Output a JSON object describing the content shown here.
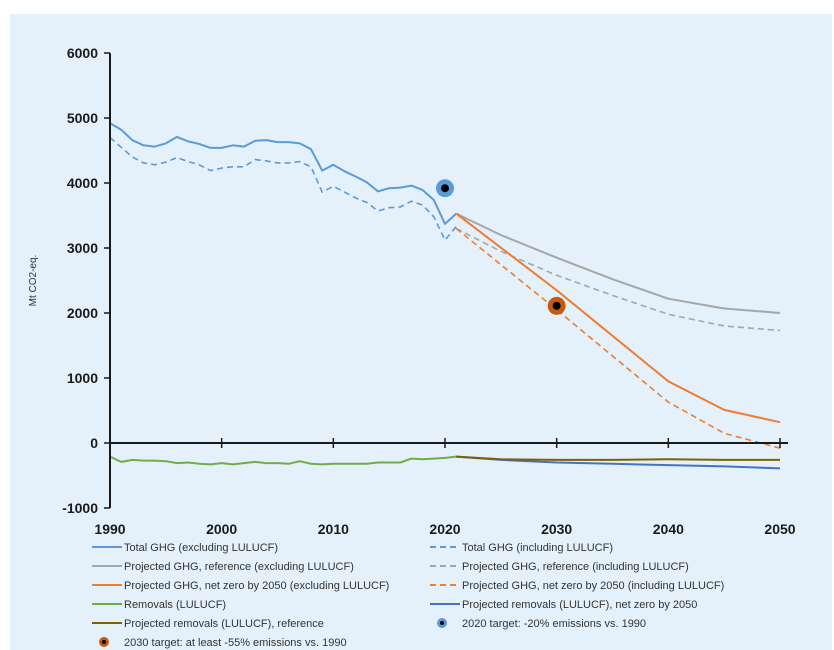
{
  "chart_data": {
    "type": "line",
    "title": "",
    "xlabel": "",
    "ylabel": "Mt CO2-eq.",
    "xlim": [
      1990,
      2050
    ],
    "ylim": [
      -1000,
      6000
    ],
    "x_ticks": [
      "1990",
      "2000",
      "2010",
      "2020",
      "2030",
      "2040",
      "2050"
    ],
    "y_ticks": [
      "-1000",
      "0",
      "1000",
      "2000",
      "3000",
      "4000",
      "5000",
      "6000"
    ],
    "grid": false,
    "legend_position": "bottom",
    "series": [
      {
        "name": "Total GHG (excluding LULUCF)",
        "color": "#5b9bd5",
        "dash": "solid",
        "width": 2,
        "x": [
          1990,
          1991,
          1992,
          1993,
          1994,
          1995,
          1996,
          1997,
          1998,
          1999,
          2000,
          2001,
          2002,
          2003,
          2004,
          2005,
          2006,
          2007,
          2008,
          2009,
          2010,
          2011,
          2012,
          2013,
          2014,
          2015,
          2016,
          2017,
          2018,
          2019,
          2020,
          2021
        ],
        "y": [
          4920,
          4820,
          4660,
          4580,
          4560,
          4610,
          4710,
          4640,
          4600,
          4540,
          4540,
          4580,
          4560,
          4650,
          4660,
          4630,
          4630,
          4610,
          4520,
          4190,
          4280,
          4180,
          4100,
          4010,
          3870,
          3920,
          3930,
          3960,
          3890,
          3740,
          3370,
          3530
        ]
      },
      {
        "name": "Total GHG (including LULUCF)",
        "color": "#5b9bd5",
        "dash": "dashed",
        "width": 1.6,
        "x": [
          1990,
          1991,
          1992,
          1993,
          1994,
          1995,
          1996,
          1997,
          1998,
          1999,
          2000,
          2001,
          2002,
          2003,
          2004,
          2005,
          2006,
          2007,
          2008,
          2009,
          2010,
          2011,
          2012,
          2013,
          2014,
          2015,
          2016,
          2017,
          2018,
          2019,
          2020,
          2021
        ],
        "y": [
          4700,
          4550,
          4400,
          4310,
          4280,
          4320,
          4390,
          4330,
          4280,
          4190,
          4230,
          4250,
          4250,
          4360,
          4340,
          4310,
          4310,
          4330,
          4250,
          3860,
          3950,
          3860,
          3770,
          3700,
          3570,
          3620,
          3630,
          3720,
          3660,
          3480,
          3120,
          3330
        ]
      },
      {
        "name": "Projected GHG, reference (excluding LULUCF)",
        "color": "#a6a6a6",
        "dash": "solid",
        "width": 2,
        "x": [
          2021,
          2025,
          2030,
          2035,
          2040,
          2045,
          2050
        ],
        "y": [
          3530,
          3200,
          2850,
          2520,
          2220,
          2070,
          2000
        ]
      },
      {
        "name": "Projected GHG, reference (including LULUCF)",
        "color": "#a6a6a6",
        "dash": "dashed",
        "width": 1.6,
        "x": [
          2021,
          2025,
          2030,
          2035,
          2040,
          2045,
          2050
        ],
        "y": [
          3300,
          2950,
          2580,
          2270,
          1980,
          1800,
          1730
        ]
      },
      {
        "name": "Projected GHG, net zero by 2050 (excluding LULUCF)",
        "color": "#ed7d31",
        "dash": "solid",
        "width": 2,
        "x": [
          2021,
          2030,
          2040,
          2045,
          2050
        ],
        "y": [
          3530,
          2350,
          950,
          510,
          320
        ]
      },
      {
        "name": "Projected GHG, net zero by 2050 (including LULUCF)",
        "color": "#ed7d31",
        "dash": "dashed",
        "width": 1.6,
        "x": [
          2021,
          2030,
          2040,
          2045,
          2050
        ],
        "y": [
          3300,
          2050,
          630,
          150,
          -80
        ]
      },
      {
        "name": "Removals (LULUCF)",
        "color": "#70ad47",
        "dash": "solid",
        "width": 2,
        "x": [
          1990,
          1991,
          1992,
          1993,
          1994,
          1995,
          1996,
          1997,
          1998,
          1999,
          2000,
          2001,
          2002,
          2003,
          2004,
          2005,
          2006,
          2007,
          2008,
          2009,
          2010,
          2011,
          2012,
          2013,
          2014,
          2015,
          2016,
          2017,
          2018,
          2019,
          2020,
          2021
        ],
        "y": [
          -210,
          -290,
          -260,
          -270,
          -270,
          -280,
          -310,
          -300,
          -320,
          -330,
          -310,
          -330,
          -310,
          -290,
          -310,
          -310,
          -320,
          -280,
          -320,
          -330,
          -320,
          -320,
          -320,
          -320,
          -300,
          -300,
          -300,
          -240,
          -250,
          -240,
          -230,
          -210
        ]
      },
      {
        "name": "Projected removals (LULUCF), net zero by 2050",
        "color": "#4472c4",
        "dash": "solid",
        "width": 2,
        "x": [
          2021,
          2025,
          2030,
          2035,
          2040,
          2045,
          2050
        ],
        "y": [
          -210,
          -260,
          -300,
          -320,
          -340,
          -360,
          -390
        ]
      },
      {
        "name": "Projected removals (LULUCF), reference",
        "color": "#7f6000",
        "dash": "solid",
        "width": 2,
        "x": [
          2021,
          2025,
          2030,
          2035,
          2040,
          2045,
          2050
        ],
        "y": [
          -210,
          -250,
          -260,
          -260,
          -250,
          -260,
          -260
        ]
      }
    ],
    "targets": [
      {
        "name": "2020 target: -20% emissions vs. 1990",
        "x": 2020,
        "y": 3920,
        "ring_color": "#5b9bd5"
      },
      {
        "name": "2030 target: at least -55% emissions vs. 1990",
        "x": 2030,
        "y": 2110,
        "ring_color": "#c55a11"
      }
    ]
  }
}
